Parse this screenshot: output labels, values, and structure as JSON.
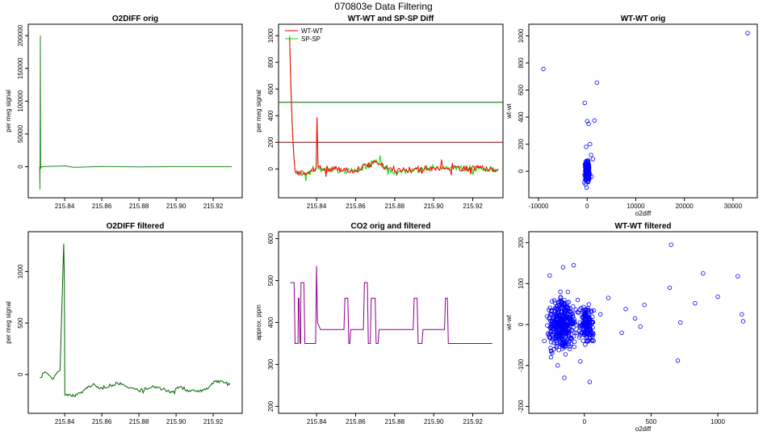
{
  "page_title": "070803e   Data Filtering",
  "chart_data": [
    {
      "id": "o2diff-orig",
      "type": "line",
      "title": "O2DIFF orig",
      "xlabel": "",
      "ylabel": "per meg signal",
      "xlim": [
        215.823,
        215.933
      ],
      "ylim": [
        -40000,
        210000
      ],
      "xticks": [
        "215.84",
        "215.86",
        "215.88",
        "215.90",
        "215.92"
      ],
      "yticks": [
        "0",
        "50000",
        "100000",
        "150000",
        "200000"
      ],
      "series": [
        {
          "name": "O2DIFF",
          "color": "#228B22",
          "points": [
            [
              215.8265,
              0
            ],
            [
              215.8267,
              -35000
            ],
            [
              215.8269,
              200000
            ],
            [
              215.8271,
              -3000
            ],
            [
              215.8275,
              0
            ],
            [
              215.84,
              1200
            ],
            [
              215.845,
              -800
            ],
            [
              215.86,
              300
            ],
            [
              215.88,
              -300
            ],
            [
              215.9,
              200
            ],
            [
              215.93,
              0
            ]
          ]
        }
      ]
    },
    {
      "id": "wtwt-spsp-diff",
      "type": "line",
      "title": "WT-WT and SP-SP Diff",
      "xlabel": "",
      "ylabel": "per meg signal",
      "xlim": [
        215.823,
        215.933
      ],
      "ylim": [
        -180,
        1050
      ],
      "xticks": [
        "215.84",
        "215.86",
        "215.88",
        "215.90",
        "215.92"
      ],
      "yticks": [
        "0",
        "200",
        "400",
        "600",
        "800",
        "1000"
      ],
      "legend": [
        "WT-WT",
        "SP-SP"
      ],
      "hlines": [
        {
          "y": 500,
          "color": "#006400"
        },
        {
          "y": 200,
          "color": "#8B0000"
        }
      ],
      "series": [
        {
          "name": "SP-SP",
          "color": "#00DD00",
          "points": [
            [
              215.8262,
              1000
            ],
            [
              215.8268,
              650
            ],
            [
              215.8275,
              350
            ],
            [
              215.8283,
              120
            ],
            [
              215.829,
              -20
            ],
            [
              215.835,
              -40
            ],
            [
              215.8398,
              0
            ],
            [
              215.8402,
              380
            ],
            [
              215.8408,
              0
            ],
            [
              215.86,
              -20
            ],
            [
              215.87,
              60
            ],
            [
              215.88,
              -30
            ],
            [
              215.9,
              10
            ],
            [
              215.933,
              0
            ]
          ]
        },
        {
          "name": "WT-WT",
          "color": "#FF0000",
          "points": [
            [
              215.8262,
              990
            ],
            [
              215.8268,
              620
            ],
            [
              215.8275,
              330
            ],
            [
              215.8283,
              110
            ],
            [
              215.829,
              -20
            ],
            [
              215.835,
              -30
            ],
            [
              215.8398,
              10
            ],
            [
              215.8402,
              390
            ],
            [
              215.8408,
              10
            ],
            [
              215.86,
              -10
            ],
            [
              215.87,
              50
            ],
            [
              215.88,
              -20
            ],
            [
              215.9,
              10
            ],
            [
              215.933,
              0
            ]
          ]
        }
      ]
    },
    {
      "id": "wtwt-orig",
      "type": "scatter",
      "title": "WT-WT orig",
      "xlabel": "o2diff",
      "ylabel": "wt-wt",
      "xlim": [
        -11000,
        34000
      ],
      "ylim": [
        -160,
        1050
      ],
      "xticks": [
        "-10000",
        "0",
        "10000",
        "20000",
        "30000"
      ],
      "yticks": [
        "0",
        "200",
        "400",
        "600",
        "800",
        "1000"
      ],
      "color": "#0000FF",
      "points": [
        [
          33000,
          1020
        ],
        [
          -9000,
          755
        ],
        [
          2000,
          655
        ],
        [
          -500,
          505
        ],
        [
          0,
          370
        ],
        [
          300,
          350
        ],
        [
          1500,
          375
        ],
        [
          600,
          200
        ],
        [
          -200,
          180
        ],
        [
          800,
          120
        ],
        [
          1200,
          90
        ],
        [
          -300,
          60
        ],
        [
          400,
          30
        ],
        [
          900,
          -40
        ],
        [
          200,
          -80
        ],
        [
          -100,
          -120
        ]
      ]
    },
    {
      "id": "o2diff-filtered",
      "type": "line",
      "title": "O2DIFF filtered",
      "xlabel": "",
      "ylabel": "per meg signal",
      "xlim": [
        215.823,
        215.933
      ],
      "ylim": [
        -330,
        1340
      ],
      "xticks": [
        "215.84",
        "215.86",
        "215.88",
        "215.90",
        "215.92"
      ],
      "yticks": [
        "0",
        "500",
        "1000"
      ],
      "series": [
        {
          "name": "O2DIFF filtered",
          "color": "#006400",
          "points": [
            [
              215.8265,
              -30
            ],
            [
              215.83,
              20
            ],
            [
              215.834,
              -40
            ],
            [
              215.8375,
              40
            ],
            [
              215.8395,
              1270
            ],
            [
              215.8398,
              980
            ],
            [
              215.8401,
              -200
            ],
            [
              215.845,
              -210
            ],
            [
              215.85,
              -160
            ],
            [
              215.855,
              -100
            ],
            [
              215.86,
              -130
            ],
            [
              215.866,
              -100
            ],
            [
              215.87,
              -80
            ],
            [
              215.875,
              -130
            ],
            [
              215.88,
              -160
            ],
            [
              215.887,
              -120
            ],
            [
              215.893,
              -140
            ],
            [
              215.898,
              -170
            ],
            [
              215.902,
              -120
            ],
            [
              215.906,
              -150
            ],
            [
              215.912,
              -170
            ],
            [
              215.917,
              -140
            ],
            [
              215.921,
              -70
            ],
            [
              215.926,
              -80
            ],
            [
              215.929,
              -100
            ]
          ]
        }
      ]
    },
    {
      "id": "co2-orig-filtered",
      "type": "line",
      "title": "CO2 orig and filtered",
      "xlabel": "",
      "ylabel": "approx. ppm",
      "xlim": [
        215.823,
        215.933
      ],
      "ylim": [
        195,
        605
      ],
      "xticks": [
        "215.84",
        "215.86",
        "215.88",
        "215.90",
        "215.92"
      ],
      "yticks": [
        "200",
        "300",
        "400",
        "500",
        "600"
      ],
      "series": [
        {
          "name": "CO2",
          "color": "#8B008B",
          "points": [
            [
              215.8265,
              495
            ],
            [
              215.8285,
              495
            ],
            [
              215.829,
              350
            ],
            [
              215.8305,
              350
            ],
            [
              215.8307,
              458
            ],
            [
              215.831,
              458
            ],
            [
              215.8315,
              350
            ],
            [
              215.8318,
              350
            ],
            [
              215.832,
              495
            ],
            [
              215.8335,
              495
            ],
            [
              215.834,
              350
            ],
            [
              215.8395,
              350
            ],
            [
              215.84,
              535
            ],
            [
              215.8405,
              400
            ],
            [
              215.842,
              383
            ],
            [
              215.854,
              383
            ],
            [
              215.8545,
              458
            ],
            [
              215.856,
              458
            ],
            [
              215.8565,
              350
            ],
            [
              215.857,
              350
            ],
            [
              215.8575,
              383
            ],
            [
              215.864,
              383
            ],
            [
              215.8645,
              495
            ],
            [
              215.866,
              495
            ],
            [
              215.8665,
              350
            ],
            [
              215.8675,
              350
            ],
            [
              215.868,
              458
            ],
            [
              215.87,
              458
            ],
            [
              215.8705,
              350
            ],
            [
              215.8715,
              350
            ],
            [
              215.872,
              383
            ],
            [
              215.8895,
              383
            ],
            [
              215.89,
              458
            ],
            [
              215.8915,
              458
            ],
            [
              215.892,
              350
            ],
            [
              215.894,
              350
            ],
            [
              215.8945,
              383
            ],
            [
              215.9055,
              383
            ],
            [
              215.906,
              458
            ],
            [
              215.907,
              458
            ],
            [
              215.9075,
              350
            ],
            [
              215.93,
              350
            ]
          ]
        }
      ]
    },
    {
      "id": "wtwt-filtered",
      "type": "scatter",
      "title": "WT-WT filtered",
      "xlabel": "o2diff",
      "ylabel": "wt-wt",
      "xlim": [
        -380,
        1260
      ],
      "ylim": [
        -205,
        215
      ],
      "xticks": [
        "0",
        "500",
        "1000"
      ],
      "yticks": [
        "-200",
        "-100",
        "0",
        "100",
        "200"
      ],
      "color": "#0000FF",
      "points": [
        [
          650,
          195
        ],
        [
          890,
          125
        ],
        [
          1150,
          118
        ],
        [
          830,
          52
        ],
        [
          640,
          90
        ],
        [
          1000,
          68
        ],
        [
          1180,
          25
        ],
        [
          1190,
          8
        ],
        [
          310,
          38
        ],
        [
          380,
          15
        ],
        [
          280,
          -20
        ],
        [
          450,
          48
        ],
        [
          180,
          65
        ],
        [
          120,
          25
        ],
        [
          60,
          -40
        ],
        [
          40,
          -140
        ],
        [
          700,
          -88
        ],
        [
          720,
          5
        ],
        [
          420,
          -5
        ],
        [
          -160,
          140
        ],
        [
          -80,
          145
        ],
        [
          -260,
          120
        ],
        [
          -300,
          -40
        ],
        [
          -200,
          -100
        ],
        [
          -150,
          -130
        ],
        [
          -220,
          40
        ],
        [
          -180,
          80
        ],
        [
          -110,
          -60
        ],
        [
          -250,
          -80
        ],
        [
          -50,
          60
        ],
        [
          -30,
          -90
        ],
        [
          -280,
          20
        ]
      ]
    }
  ]
}
